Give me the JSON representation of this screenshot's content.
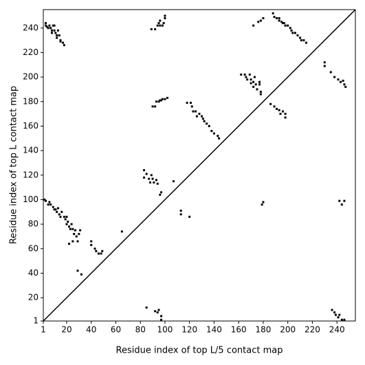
{
  "chart_data": {
    "type": "scatter",
    "x_label": "Residue index of top L/5 contact map",
    "y_label": "Residue index of top L contact map",
    "xlim": [
      1,
      255
    ],
    "ylim": [
      1,
      255
    ],
    "xticks": [
      1,
      20,
      40,
      60,
      80,
      100,
      120,
      140,
      160,
      180,
      200,
      220,
      240
    ],
    "yticks": [
      1,
      20,
      40,
      60,
      80,
      100,
      120,
      140,
      160,
      180,
      200,
      220,
      240
    ],
    "diagonal_line": true,
    "color": "#000000",
    "x": [
      3,
      3,
      4,
      6,
      7,
      8,
      8,
      9,
      10,
      11,
      12,
      12,
      13,
      14,
      15,
      15,
      17,
      18,
      5,
      10,
      89,
      92,
      94,
      95,
      96,
      96,
      98,
      99,
      100,
      100,
      172,
      176,
      178,
      180,
      188,
      189,
      191,
      193,
      193,
      195,
      196,
      197,
      198,
      200,
      202,
      203,
      204,
      206,
      208,
      210,
      211,
      213,
      215,
      162,
      165,
      166,
      167,
      169,
      170,
      170,
      172,
      172,
      173,
      174,
      175,
      177,
      177,
      178,
      178,
      90,
      92,
      93,
      95,
      96,
      97,
      98,
      100,
      102,
      118,
      121,
      122,
      123,
      125,
      126,
      128,
      130,
      131,
      132,
      134,
      136,
      138,
      140,
      143,
      144,
      186,
      189,
      191,
      193,
      194,
      196,
      198,
      198,
      230,
      230,
      235,
      238,
      241,
      243,
      245,
      246,
      247,
      83,
      83,
      85,
      87,
      88,
      89,
      90,
      91,
      93,
      94,
      96,
      97,
      107,
      113,
      113,
      120,
      2,
      3,
      5,
      6,
      7,
      9,
      10,
      11,
      12,
      13,
      14,
      15,
      16,
      18,
      19,
      20,
      20,
      21,
      22,
      23,
      24,
      25,
      26,
      27,
      28,
      29,
      30,
      31,
      22,
      25,
      29,
      32,
      40,
      40,
      43,
      44,
      46,
      48,
      49,
      65,
      85,
      92,
      94,
      95,
      97,
      97,
      179,
      180,
      236,
      238,
      239,
      241,
      242,
      244,
      246,
      242,
      246,
      244
    ],
    "values": [
      244,
      242,
      241,
      242,
      240,
      238,
      236,
      242,
      238,
      236,
      234,
      232,
      238,
      234,
      230,
      229,
      228,
      226,
      240,
      242,
      239,
      239,
      242,
      244,
      242,
      246,
      242,
      244,
      248,
      250,
      242,
      245,
      246,
      248,
      252,
      249,
      248,
      248,
      246,
      245,
      244,
      244,
      242,
      242,
      240,
      238,
      236,
      236,
      234,
      232,
      230,
      230,
      228,
      202,
      202,
      200,
      198,
      202,
      198,
      195,
      196,
      192,
      200,
      194,
      190,
      196,
      194,
      188,
      186,
      176,
      176,
      180,
      180,
      181,
      181,
      182,
      182,
      183,
      179,
      179,
      176,
      172,
      172,
      168,
      170,
      168,
      166,
      164,
      162,
      160,
      156,
      154,
      152,
      150,
      178,
      176,
      174,
      173,
      170,
      172,
      170,
      167,
      212,
      209,
      204,
      200,
      198,
      196,
      197,
      194,
      192,
      124,
      118,
      121,
      117,
      114,
      120,
      117,
      114,
      116,
      113,
      104,
      106,
      115,
      91,
      88,
      86,
      100,
      99,
      96,
      98,
      96,
      94,
      92,
      92,
      90,
      93,
      88,
      86,
      90,
      86,
      84,
      86,
      80,
      82,
      78,
      76,
      80,
      76,
      72,
      75,
      70,
      66,
      72,
      75,
      64,
      66,
      42,
      39,
      66,
      63,
      60,
      58,
      56,
      56,
      58,
      74,
      12,
      9,
      8,
      10,
      5,
      2,
      96,
      98,
      10,
      8,
      6,
      4,
      6,
      2,
      2,
      99,
      99,
      96
    ]
  }
}
